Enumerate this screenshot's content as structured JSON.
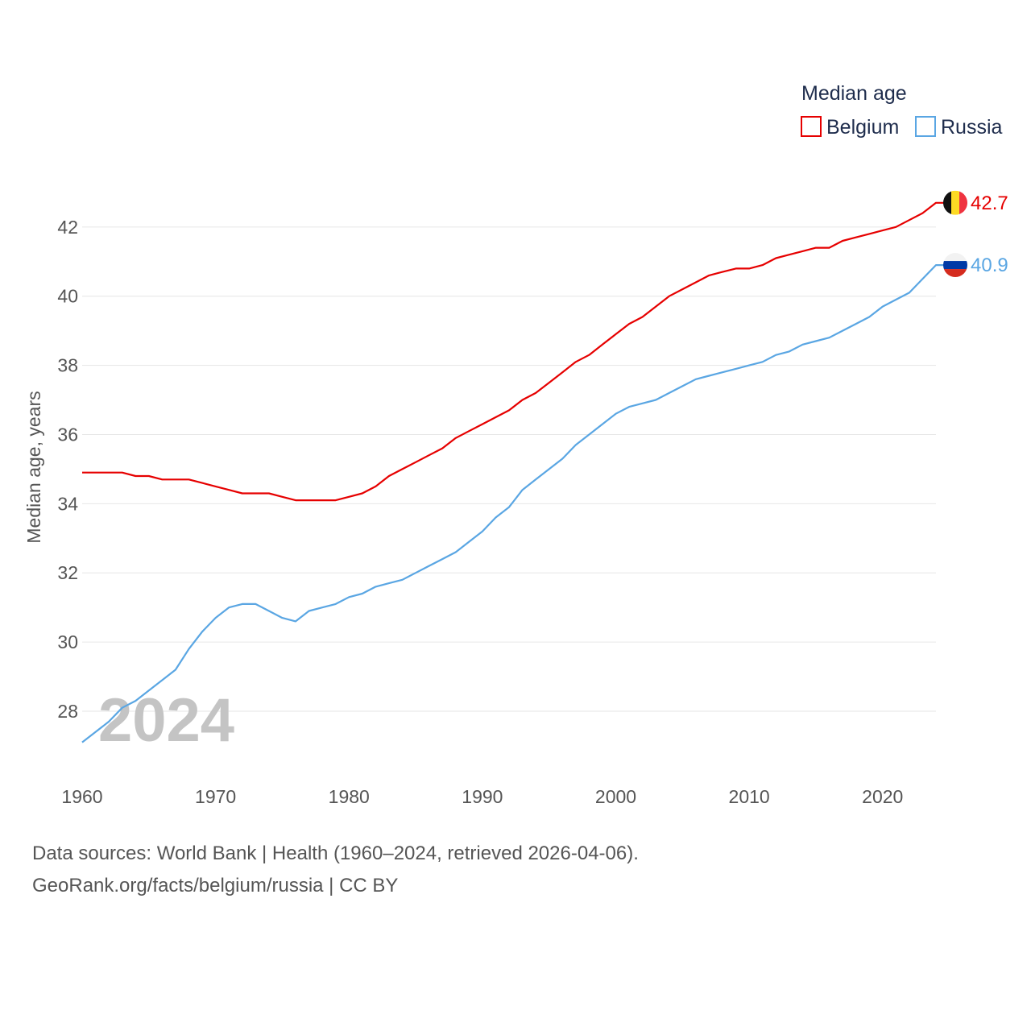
{
  "chart_data": {
    "type": "line",
    "title": "",
    "legend_title": "Median age",
    "ylabel": "Median age, years",
    "xlabel": "",
    "xlim": [
      1960,
      2024
    ],
    "ylim": [
      26.3,
      43.3
    ],
    "x_ticks": [
      1960,
      1970,
      1980,
      1990,
      2000,
      2010,
      2020
    ],
    "y_ticks": [
      28,
      30,
      32,
      34,
      36,
      38,
      40,
      42
    ],
    "grid": true,
    "year_label": "2024",
    "x": [
      1960,
      1961,
      1962,
      1963,
      1964,
      1965,
      1966,
      1967,
      1968,
      1969,
      1970,
      1971,
      1972,
      1973,
      1974,
      1975,
      1976,
      1977,
      1978,
      1979,
      1980,
      1981,
      1982,
      1983,
      1984,
      1985,
      1986,
      1987,
      1988,
      1989,
      1990,
      1991,
      1992,
      1993,
      1994,
      1995,
      1996,
      1997,
      1998,
      1999,
      2000,
      2001,
      2002,
      2003,
      2004,
      2005,
      2006,
      2007,
      2008,
      2009,
      2010,
      2011,
      2012,
      2013,
      2014,
      2015,
      2016,
      2017,
      2018,
      2019,
      2020,
      2021,
      2022,
      2023,
      2024
    ],
    "series": [
      {
        "name": "Belgium",
        "color": "#e60000",
        "end_label": "42.7",
        "flag": "belgium-flag",
        "values": [
          34.9,
          34.9,
          34.9,
          34.9,
          34.8,
          34.8,
          34.7,
          34.7,
          34.7,
          34.6,
          34.5,
          34.4,
          34.3,
          34.3,
          34.3,
          34.2,
          34.1,
          34.1,
          34.1,
          34.1,
          34.2,
          34.3,
          34.5,
          34.8,
          35.0,
          35.2,
          35.4,
          35.6,
          35.9,
          36.1,
          36.3,
          36.5,
          36.7,
          37.0,
          37.2,
          37.5,
          37.8,
          38.1,
          38.3,
          38.6,
          38.9,
          39.2,
          39.4,
          39.7,
          40.0,
          40.2,
          40.4,
          40.6,
          40.7,
          40.8,
          40.8,
          40.9,
          41.1,
          41.2,
          41.3,
          41.4,
          41.4,
          41.6,
          41.7,
          41.8,
          41.9,
          42.0,
          42.2,
          42.4,
          42.7
        ]
      },
      {
        "name": "Russia",
        "color": "#5aa6e3",
        "end_label": "40.9",
        "flag": "russia-flag",
        "values": [
          27.1,
          27.4,
          27.7,
          28.1,
          28.3,
          28.6,
          28.9,
          29.2,
          29.8,
          30.3,
          30.7,
          31.0,
          31.1,
          31.1,
          30.9,
          30.7,
          30.6,
          30.9,
          31.0,
          31.1,
          31.3,
          31.4,
          31.6,
          31.7,
          31.8,
          32.0,
          32.2,
          32.4,
          32.6,
          32.9,
          33.2,
          33.6,
          33.9,
          34.4,
          34.7,
          35.0,
          35.3,
          35.7,
          36.0,
          36.3,
          36.6,
          36.8,
          36.9,
          37.0,
          37.2,
          37.4,
          37.6,
          37.7,
          37.8,
          37.9,
          38.0,
          38.1,
          38.3,
          38.4,
          38.6,
          38.7,
          38.8,
          39.0,
          39.2,
          39.4,
          39.7,
          39.9,
          40.1,
          40.5,
          40.9
        ]
      }
    ]
  },
  "sources": {
    "line1": "Data sources: World Bank | Health (1960–2024, retrieved 2026-04-06).",
    "line2": "GeoRank.org/facts/belgium/russia | CC BY"
  }
}
